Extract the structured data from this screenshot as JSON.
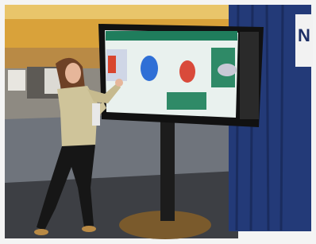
{
  "scene": {
    "sign_text": "N"
  }
}
